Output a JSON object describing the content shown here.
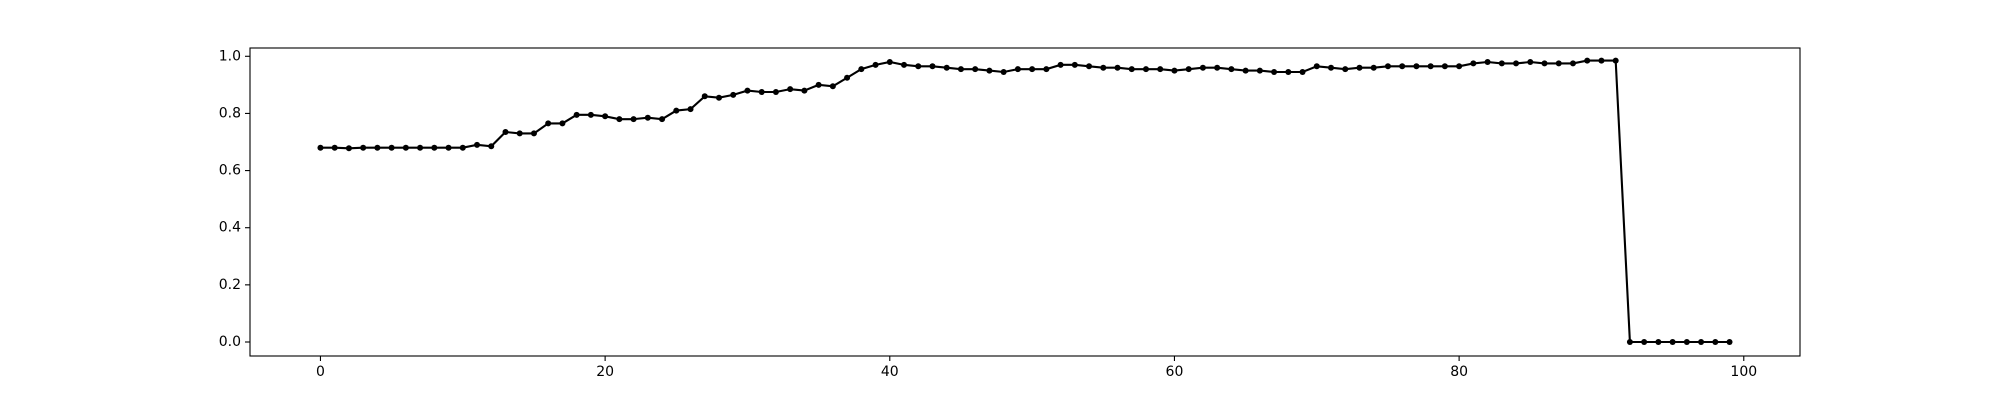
{
  "chart_data": {
    "type": "line",
    "x": [
      0,
      1,
      2,
      3,
      4,
      5,
      6,
      7,
      8,
      9,
      10,
      11,
      12,
      13,
      14,
      15,
      16,
      17,
      18,
      19,
      20,
      21,
      22,
      23,
      24,
      25,
      26,
      27,
      28,
      29,
      30,
      31,
      32,
      33,
      34,
      35,
      36,
      37,
      38,
      39,
      40,
      41,
      42,
      43,
      44,
      45,
      46,
      47,
      48,
      49,
      50,
      51,
      52,
      53,
      54,
      55,
      56,
      57,
      58,
      59,
      60,
      61,
      62,
      63,
      64,
      65,
      66,
      67,
      68,
      69,
      70,
      71,
      72,
      73,
      74,
      75,
      76,
      77,
      78,
      79,
      80,
      81,
      82,
      83,
      84,
      85,
      86,
      87,
      88,
      89,
      90,
      91,
      92,
      93,
      94,
      95,
      96,
      97,
      98,
      99
    ],
    "series": [
      {
        "color": "#000000",
        "values": [
          0.68,
          0.68,
          0.678,
          0.68,
          0.68,
          0.68,
          0.68,
          0.68,
          0.68,
          0.68,
          0.68,
          0.69,
          0.685,
          0.735,
          0.73,
          0.73,
          0.765,
          0.765,
          0.795,
          0.795,
          0.79,
          0.78,
          0.78,
          0.785,
          0.78,
          0.81,
          0.815,
          0.86,
          0.855,
          0.865,
          0.88,
          0.875,
          0.875,
          0.885,
          0.88,
          0.9,
          0.895,
          0.925,
          0.955,
          0.97,
          0.98,
          0.97,
          0.965,
          0.965,
          0.96,
          0.955,
          0.955,
          0.95,
          0.945,
          0.955,
          0.955,
          0.955,
          0.97,
          0.97,
          0.965,
          0.96,
          0.96,
          0.955,
          0.955,
          0.955,
          0.95,
          0.955,
          0.96,
          0.96,
          0.955,
          0.95,
          0.95,
          0.945,
          0.945,
          0.945,
          0.965,
          0.96,
          0.955,
          0.96,
          0.96,
          0.965,
          0.965,
          0.965,
          0.965,
          0.965,
          0.965,
          0.975,
          0.98,
          0.975,
          0.975,
          0.98,
          0.975,
          0.975,
          0.975,
          0.985,
          0.985,
          0.985,
          0,
          0,
          0,
          0,
          0,
          0,
          0,
          0
        ]
      }
    ],
    "xlim": [
      -4.95,
      103.95
    ],
    "xticks": [
      0,
      20,
      40,
      60,
      80,
      100
    ],
    "ylim": [
      -0.049,
      1.029
    ],
    "yticks": [
      {
        "value": 0,
        "label": "0.0"
      },
      0.2,
      0.4,
      0.6,
      0.8,
      {
        "value": 1,
        "label": "1.0"
      }
    ],
    "grid": false
  }
}
